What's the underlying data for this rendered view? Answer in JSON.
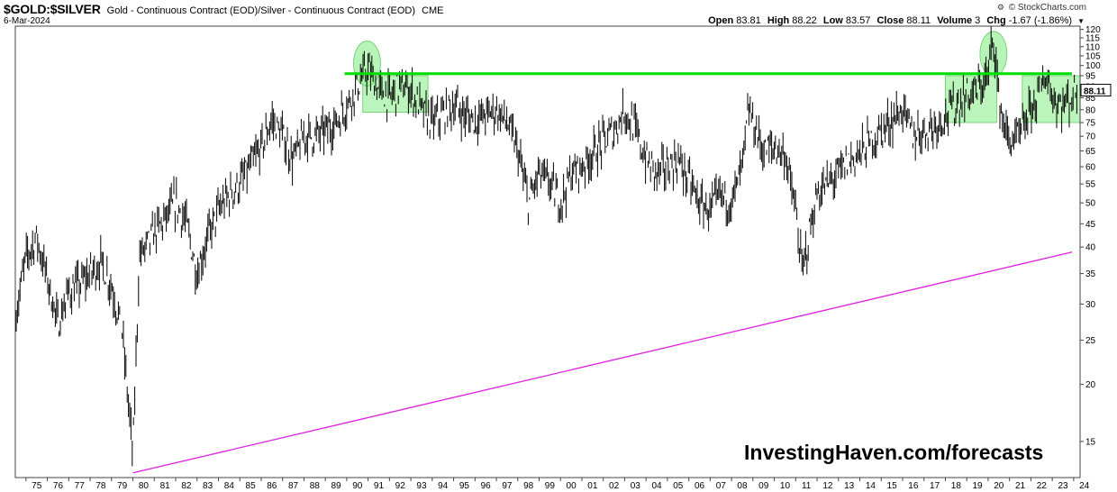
{
  "header": {
    "symbol": "$GOLD:$SILVER",
    "description": "Gold - Continuous Contract (EOD)/Silver - Continuous Contract (EOD)",
    "exchange": "CME",
    "date": "6-Mar-2024",
    "brand": "© StockCharts.com"
  },
  "ohlc": {
    "open_label": "Open",
    "open": "83.81",
    "high_label": "High",
    "high": "88.22",
    "low_label": "Low",
    "low": "83.57",
    "close_label": "Close",
    "close": "88.11",
    "volume_label": "Volume",
    "volume": "3",
    "chg_label": "Chg",
    "chg": "-1.67 (-1.86%)"
  },
  "watermark": "InvestingHaven.com/forecasts",
  "colors": {
    "price": "#000000",
    "resistance": "#00dd00",
    "support": "#e020e0",
    "highlight_fill": "#90ee90",
    "last_price_box": "#000000"
  },
  "chart_data": {
    "type": "bar",
    "scale": "log",
    "ylim": [
      12.5,
      122
    ],
    "x_range": [
      1974.5,
      2024.3
    ],
    "y_ticks": [
      "120",
      "115",
      "110",
      "105",
      "100",
      "95",
      "90",
      "85",
      "80",
      "75",
      "70",
      "65",
      "60",
      "55",
      "50",
      "45",
      "40",
      "35",
      "30",
      "25",
      "20",
      "15"
    ],
    "x_ticks": [
      "75",
      "76",
      "77",
      "78",
      "79",
      "80",
      "81",
      "82",
      "83",
      "84",
      "85",
      "86",
      "87",
      "88",
      "89",
      "90",
      "91",
      "92",
      "93",
      "94",
      "95",
      "96",
      "97",
      "98",
      "99",
      "00",
      "01",
      "02",
      "03",
      "04",
      "05",
      "06",
      "07",
      "08",
      "09",
      "10",
      "11",
      "12",
      "13",
      "14",
      "15",
      "16",
      "17",
      "18",
      "19",
      "20",
      "21",
      "22",
      "23",
      "24"
    ],
    "last_value": "88.11",
    "series": [
      {
        "values_by_year": [
          [
            1974.5,
            28
          ],
          [
            1975.0,
            38
          ],
          [
            1975.5,
            42
          ],
          [
            1976.0,
            34
          ],
          [
            1976.5,
            27
          ],
          [
            1977.0,
            32
          ],
          [
            1977.5,
            33
          ],
          [
            1978.0,
            35
          ],
          [
            1978.5,
            37
          ],
          [
            1979.0,
            33
          ],
          [
            1979.5,
            26
          ],
          [
            1980.0,
            14
          ],
          [
            1980.3,
            38
          ],
          [
            1980.6,
            40
          ],
          [
            1981.0,
            43
          ],
          [
            1981.5,
            46
          ],
          [
            1982.0,
            50
          ],
          [
            1982.5,
            45
          ],
          [
            1983.0,
            35
          ],
          [
            1983.5,
            42
          ],
          [
            1984.0,
            48
          ],
          [
            1984.5,
            52
          ],
          [
            1985.0,
            55
          ],
          [
            1985.5,
            60
          ],
          [
            1986.0,
            66
          ],
          [
            1986.5,
            76
          ],
          [
            1987.0,
            70
          ],
          [
            1987.5,
            62
          ],
          [
            1988.0,
            70
          ],
          [
            1988.5,
            70
          ],
          [
            1989.0,
            72
          ],
          [
            1989.5,
            75
          ],
          [
            1990.0,
            82
          ],
          [
            1990.5,
            90
          ],
          [
            1991.0,
            98
          ],
          [
            1991.5,
            88
          ],
          [
            1992.0,
            85
          ],
          [
            1992.5,
            90
          ],
          [
            1993.0,
            88
          ],
          [
            1993.5,
            80
          ],
          [
            1994.0,
            75
          ],
          [
            1994.5,
            78
          ],
          [
            1995.0,
            82
          ],
          [
            1995.5,
            78
          ],
          [
            1996.0,
            76
          ],
          [
            1996.5,
            78
          ],
          [
            1997.0,
            80
          ],
          [
            1997.5,
            75
          ],
          [
            1998.0,
            65
          ],
          [
            1998.5,
            50
          ],
          [
            1999.0,
            58
          ],
          [
            1999.5,
            55
          ],
          [
            2000.0,
            50
          ],
          [
            2000.5,
            58
          ],
          [
            2001.0,
            60
          ],
          [
            2001.5,
            64
          ],
          [
            2002.0,
            68
          ],
          [
            2002.5,
            72
          ],
          [
            2003.0,
            80
          ],
          [
            2003.5,
            72
          ],
          [
            2004.0,
            62
          ],
          [
            2004.5,
            58
          ],
          [
            2005.0,
            60
          ],
          [
            2005.5,
            62
          ],
          [
            2006.0,
            56
          ],
          [
            2006.5,
            50
          ],
          [
            2007.0,
            48
          ],
          [
            2007.5,
            52
          ],
          [
            2008.0,
            50
          ],
          [
            2008.5,
            60
          ],
          [
            2008.8,
            80
          ],
          [
            2009.0,
            75
          ],
          [
            2009.5,
            65
          ],
          [
            2010.0,
            66
          ],
          [
            2010.5,
            64
          ],
          [
            2011.0,
            48
          ],
          [
            2011.3,
            35
          ],
          [
            2011.6,
            42
          ],
          [
            2012.0,
            52
          ],
          [
            2012.5,
            55
          ],
          [
            2013.0,
            58
          ],
          [
            2013.5,
            62
          ],
          [
            2014.0,
            64
          ],
          [
            2014.5,
            68
          ],
          [
            2015.0,
            72
          ],
          [
            2015.5,
            76
          ],
          [
            2016.0,
            80
          ],
          [
            2016.5,
            70
          ],
          [
            2017.0,
            72
          ],
          [
            2017.5,
            74
          ],
          [
            2018.0,
            78
          ],
          [
            2018.5,
            82
          ],
          [
            2019.0,
            86
          ],
          [
            2019.5,
            88
          ],
          [
            2020.0,
            95
          ],
          [
            2020.25,
            118
          ],
          [
            2020.5,
            85
          ],
          [
            2020.8,
            72
          ],
          [
            2021.0,
            68
          ],
          [
            2021.5,
            70
          ],
          [
            2022.0,
            80
          ],
          [
            2022.5,
            90
          ],
          [
            2022.8,
            95
          ],
          [
            2023.0,
            85
          ],
          [
            2023.5,
            82
          ],
          [
            2024.0,
            86
          ],
          [
            2024.17,
            88.11
          ]
        ]
      }
    ],
    "resistance_line": {
      "from": [
        1989.9,
        96
      ],
      "to": [
        2024.3,
        96
      ]
    },
    "support_line": {
      "from": [
        1980.0,
        12.8
      ],
      "to": [
        2024.3,
        39
      ]
    },
    "highlight_circles": [
      {
        "x": 1990.95,
        "y": 101
      },
      {
        "x": 2020.25,
        "y": 106
      }
    ],
    "highlight_boxes": [
      {
        "x0": 1990.75,
        "x1": 1993.8,
        "y0": 79,
        "y1": 95
      },
      {
        "x0": 2018.0,
        "x1": 2020.4,
        "y0": 75,
        "y1": 95
      },
      {
        "x0": 2021.6,
        "x1": 2024.3,
        "y0": 75,
        "y1": 95
      }
    ]
  }
}
